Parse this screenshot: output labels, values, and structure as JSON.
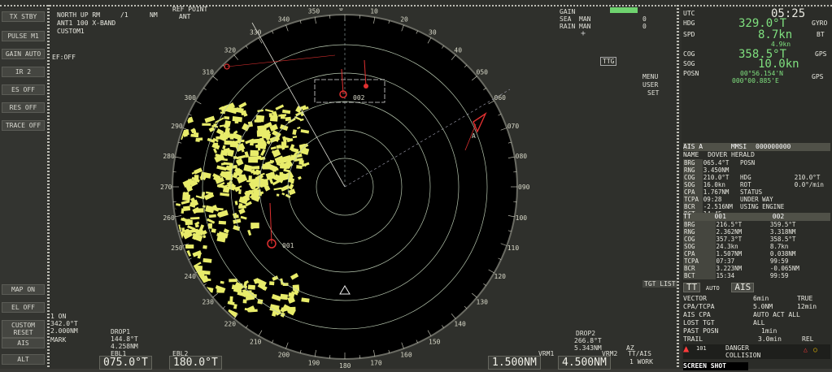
{
  "left_strip": {
    "buttons": [
      "TX STBY",
      "PULSE M1",
      "GAIN AUTO",
      "IR 2",
      "ES OFF",
      "RES OFF",
      "TRACE OFF",
      "MAP ON",
      "EL OFF",
      "CUSTOM RESET",
      "AIS",
      "ALT"
    ]
  },
  "top_left": {
    "mode": "NORTH UP RM",
    "band": "ANT1 100 X-BAND",
    "custom": "CUSTOM1",
    "ef": "EF:OFF",
    "scale_glyph": "/1",
    "nm": "NM",
    "refpoint": "REF POINT",
    "ant": "ANT"
  },
  "top_right_radar": {
    "gain": "GAIN",
    "sea": "SEA",
    "sea_val": "MAN",
    "sea_num": "0",
    "rain": "RAIN",
    "rain_val": "MAN",
    "rain_num": "0",
    "ttg": "TTG",
    "menu": "MENU",
    "user": "USER",
    "set": "SET",
    "tgt_list": "TGT LIST"
  },
  "bearing_scale": [
    "350",
    "0",
    "10",
    "20",
    "30",
    "40",
    "050",
    "060",
    "070",
    "080",
    "090",
    "100",
    "110",
    "120",
    "130",
    "140",
    "150",
    "160",
    "170",
    "180",
    "190",
    "200",
    "210",
    "220",
    "230",
    "240",
    "250",
    "260",
    "270",
    "280",
    "290",
    "300",
    "310",
    "320",
    "330",
    "340"
  ],
  "targets": {
    "t1": "002",
    "t2": "001",
    "ais": "A"
  },
  "bottom_left": {
    "line1": "1 ON",
    "line2": "342.0°T",
    "line3": "2.000NM",
    "mark": "MARK",
    "drop1": "DROP1",
    "drop1_brg": "144.8°T",
    "drop1_rng": "4.258NM",
    "ebl1": "EBL1",
    "ebl2": "EBL2",
    "ebl1_val": "075.0°T",
    "ebl2_val": "180.0°T"
  },
  "bottom_right_radar": {
    "drop2": "DROP2",
    "drop2_brg": "266.8°T",
    "drop2_rng": "5.343NM",
    "az": "AZ",
    "vrm1": "VRM1",
    "vrm2": "VRM2",
    "vrm1_val": "1.500NM",
    "vrm2_val": "4.500NM",
    "tt_ais": "TT/AIS",
    "work": "1 WORK"
  },
  "right_panel": {
    "time": "05:25",
    "utc": "UTC",
    "hdg_label": "HDG",
    "hdg": "329.0°T",
    "hdg_src": "GYRO",
    "spd_label": "SPD",
    "spd": "8.7kn",
    "spd2": "4.9kn",
    "spd_src": "BT",
    "cog_label": "COG",
    "cog": "358.5°T",
    "cog_src": "GPS",
    "sog_label": "SOG",
    "sog": "10.0kn",
    "posn_label": "POSN",
    "posn1": "00°56.154'N",
    "posn2": "000°00.885'E",
    "posn_src": "GPS",
    "ais_header": "AIS A",
    "mmsi_label": "MMSI",
    "mmsi": "000000000",
    "name_label": "NAME",
    "name": "DOVER HERALD",
    "ais_rows": [
      [
        "BRG",
        "065.4°T",
        "POSN",
        ""
      ],
      [
        "RNG",
        "3.450NM",
        "",
        ""
      ],
      [
        "COG",
        "210.0°T",
        "HDG",
        "210.0°T"
      ],
      [
        "SOG",
        "16.0kn",
        "ROT",
        "0.0°/min"
      ],
      [
        "CPA",
        "1.767NM",
        "STATUS",
        ""
      ],
      [
        "TCPA",
        "09:28",
        "UNDER WAY",
        ""
      ],
      [
        "BCR",
        "-2.516NM",
        "USING ENGINE",
        ""
      ],
      [
        "BCT",
        "14:45",
        "",
        ""
      ]
    ],
    "tt_header": "TT",
    "tt_ids": [
      "001",
      "002"
    ],
    "tt_rows": [
      [
        "BRG",
        "216.5°T",
        "359.5°T"
      ],
      [
        "RNG",
        "2.362NM",
        "3.318NM"
      ],
      [
        "COG",
        "357.3°T",
        "358.5°T"
      ],
      [
        "SOG",
        "24.3kn",
        "8.7kn"
      ],
      [
        "CPA",
        "1.507NM",
        "0.038NM"
      ],
      [
        "TCPA",
        "07:37",
        "99:59"
      ],
      [
        "BCR",
        "3.223NM",
        "-0.065NM"
      ],
      [
        "BCT",
        "15:34",
        "99:59"
      ]
    ],
    "mode_tt": "TT",
    "mode_auto": "AUTO",
    "mode_ais": "AIS",
    "vector": "VECTOR",
    "vector_val": "6min",
    "vector_mode": "TRUE",
    "cpa_tcpa": "CPA/TCPA",
    "cpa_val": "5.0NM",
    "cpa_min": "12min",
    "ais_cpa": "AIS CPA",
    "ais_cpa_val": "AUTO ACT ALL",
    "lost_tgt": "LOST TGT",
    "lost_val": "ALL",
    "past_posn": "PAST POSN",
    "past_val": "1min",
    "trail": "TRAIL",
    "trail_val": "3.0min",
    "rel": "REL",
    "alert1": "DANGER",
    "alert2": "COLLISION",
    "alert_id": "101",
    "screen_shot": "SCREEN SHOT"
  },
  "colors": {
    "radar_bg": "#000000",
    "echo": "#e8ec6a",
    "ring": "#b8c8b0",
    "target_red": "#e03030",
    "green": "#7fe07f"
  }
}
